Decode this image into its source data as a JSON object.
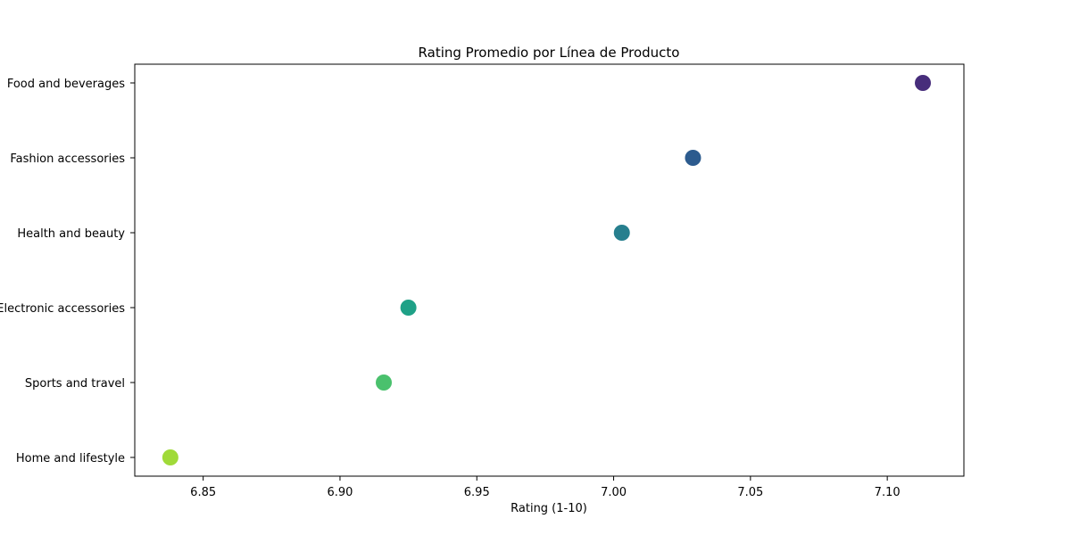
{
  "chart_data": {
    "type": "scatter",
    "title": "Rating Promedio por Línea de Producto",
    "xlabel": "Rating (1-10)",
    "ylabel": "",
    "xlim": [
      6.825,
      7.128
    ],
    "x_ticks": [
      6.85,
      6.9,
      6.95,
      7.0,
      7.05,
      7.1
    ],
    "x_tick_labels": [
      "6.85",
      "6.90",
      "6.95",
      "7.00",
      "7.05",
      "7.10"
    ],
    "grid": false,
    "legend": "none",
    "categories": [
      "Food and beverages",
      "Fashion accessories",
      "Health and beauty",
      "Electronic accessories",
      "Sports and travel",
      "Home and lifestyle"
    ],
    "values": [
      7.113,
      7.029,
      7.003,
      6.925,
      6.916,
      6.838
    ],
    "colors": [
      "#472d7b",
      "#2c5b8e",
      "#277f8e",
      "#1fa187",
      "#4ac16d",
      "#a0da39"
    ]
  }
}
